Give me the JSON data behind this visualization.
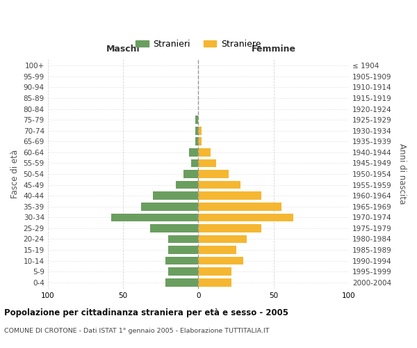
{
  "age_groups": [
    "0-4",
    "5-9",
    "10-14",
    "15-19",
    "20-24",
    "25-29",
    "30-34",
    "35-39",
    "40-44",
    "45-49",
    "50-54",
    "55-59",
    "60-64",
    "65-69",
    "70-74",
    "75-79",
    "80-84",
    "85-89",
    "90-94",
    "95-99",
    "100+"
  ],
  "birth_years": [
    "2000-2004",
    "1995-1999",
    "1990-1994",
    "1985-1989",
    "1980-1984",
    "1975-1979",
    "1970-1974",
    "1965-1969",
    "1960-1964",
    "1955-1959",
    "1950-1954",
    "1945-1949",
    "1940-1944",
    "1935-1939",
    "1930-1934",
    "1925-1929",
    "1920-1924",
    "1915-1919",
    "1910-1914",
    "1905-1909",
    "≤ 1904"
  ],
  "males": [
    22,
    20,
    22,
    20,
    20,
    32,
    58,
    38,
    30,
    15,
    10,
    5,
    6,
    2,
    2,
    2,
    0,
    0,
    0,
    0,
    0
  ],
  "females": [
    22,
    22,
    30,
    25,
    32,
    42,
    63,
    55,
    42,
    28,
    20,
    12,
    8,
    2,
    2,
    0,
    0,
    0,
    0,
    0,
    0
  ],
  "male_color": "#6a9e5f",
  "female_color": "#f5b731",
  "background_color": "#ffffff",
  "grid_color": "#cccccc",
  "title": "Popolazione per cittadinanza straniera per età e sesso - 2005",
  "subtitle": "COMUNE DI CROTONE - Dati ISTAT 1° gennaio 2005 - Elaborazione TUTTITALIA.IT",
  "ylabel_left": "Fasce di età",
  "ylabel_right": "Anni di nascita",
  "xlabel_left": "Maschi",
  "xlabel_right": "Femmine",
  "legend_male": "Stranieri",
  "legend_female": "Straniere",
  "xlim": 100,
  "xticks": [
    -100,
    -50,
    0,
    50,
    100
  ],
  "xticklabels": [
    "100",
    "50",
    "0",
    "50",
    "100"
  ]
}
